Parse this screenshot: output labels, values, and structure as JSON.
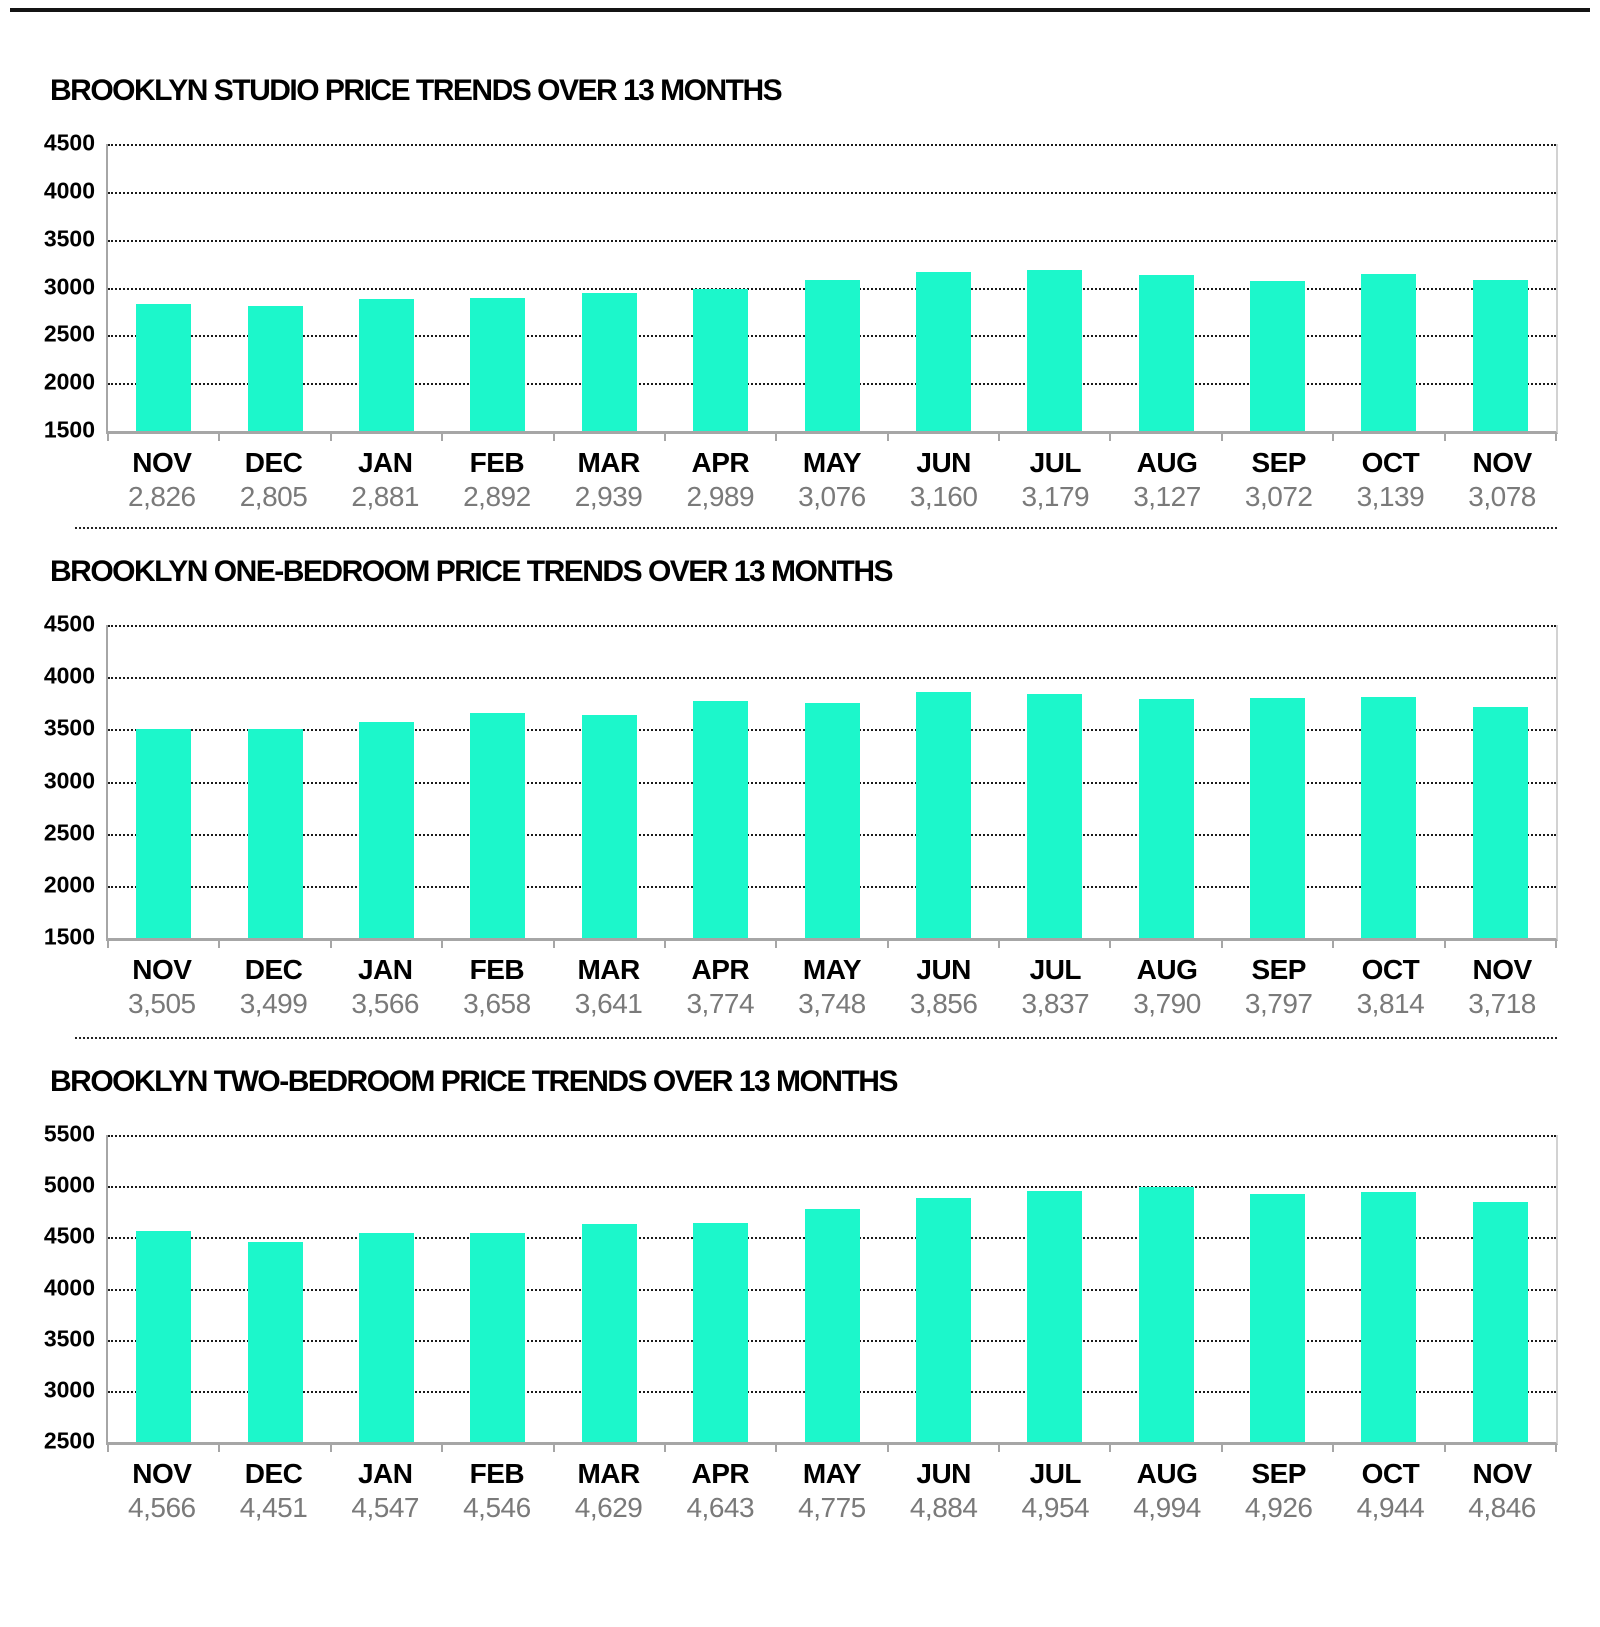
{
  "page": {
    "background": "#ffffff"
  },
  "style": {
    "bar_color": "#1cf7cb",
    "axis_color": "#a6a6a6",
    "right_border_color": "#d2d2d2",
    "gridline_color": "#1a1a1a",
    "value_label_color": "#7a7a7a",
    "title_color": "#000000"
  },
  "chart_data": [
    {
      "type": "bar",
      "title": "BROOKLYN STUDIO PRICE TRENDS OVER 13 MONTHS",
      "categories": [
        "NOV",
        "DEC",
        "JAN",
        "FEB",
        "MAR",
        "APR",
        "MAY",
        "JUN",
        "JUL",
        "AUG",
        "SEP",
        "OCT",
        "NOV"
      ],
      "values": [
        2826,
        2805,
        2881,
        2892,
        2939,
        2989,
        3076,
        3160,
        3179,
        3127,
        3072,
        3139,
        3078
      ],
      "value_labels": [
        "2,826",
        "2,805",
        "2,881",
        "2,892",
        "2,939",
        "2,989",
        "3,076",
        "3,160",
        "3,179",
        "3,127",
        "3,072",
        "3,139",
        "3,078"
      ],
      "ylim": [
        1500,
        4500
      ],
      "y_ticks": [
        4500,
        4000,
        3500,
        3000,
        2500,
        2000,
        1500
      ],
      "xlabel": "",
      "ylabel": "",
      "grid": "dotted-horizontal",
      "legend": "none"
    },
    {
      "type": "bar",
      "title": "BROOKLYN ONE-BEDROOM PRICE TRENDS OVER 13 MONTHS",
      "categories": [
        "NOV",
        "DEC",
        "JAN",
        "FEB",
        "MAR",
        "APR",
        "MAY",
        "JUN",
        "JUL",
        "AUG",
        "SEP",
        "OCT",
        "NOV"
      ],
      "values": [
        3505,
        3499,
        3566,
        3658,
        3641,
        3774,
        3748,
        3856,
        3837,
        3790,
        3797,
        3814,
        3718
      ],
      "value_labels": [
        "3,505",
        "3,499",
        "3,566",
        "3,658",
        "3,641",
        "3,774",
        "3,748",
        "3,856",
        "3,837",
        "3,790",
        "3,797",
        "3,814",
        "3,718"
      ],
      "ylim": [
        1500,
        4500
      ],
      "y_ticks": [
        4500,
        4000,
        3500,
        3000,
        2500,
        2000,
        1500
      ],
      "xlabel": "",
      "ylabel": "",
      "grid": "dotted-horizontal",
      "legend": "none"
    },
    {
      "type": "bar",
      "title": "BROOKLYN TWO-BEDROOM PRICE TRENDS OVER 13 MONTHS",
      "categories": [
        "NOV",
        "DEC",
        "JAN",
        "FEB",
        "MAR",
        "APR",
        "MAY",
        "JUN",
        "JUL",
        "AUG",
        "SEP",
        "OCT",
        "NOV"
      ],
      "values": [
        4566,
        4451,
        4547,
        4546,
        4629,
        4643,
        4775,
        4884,
        4954,
        4994,
        4926,
        4944,
        4846
      ],
      "value_labels": [
        "4,566",
        "4,451",
        "4,547",
        "4,546",
        "4,629",
        "4,643",
        "4,775",
        "4,884",
        "4,954",
        "4,994",
        "4,926",
        "4,944",
        "4,846"
      ],
      "ylim": [
        2500,
        5500
      ],
      "y_ticks": [
        5500,
        5000,
        4500,
        4000,
        3500,
        3000,
        2500
      ],
      "xlabel": "",
      "ylabel": "",
      "grid": "dotted-horizontal",
      "legend": "none"
    }
  ]
}
